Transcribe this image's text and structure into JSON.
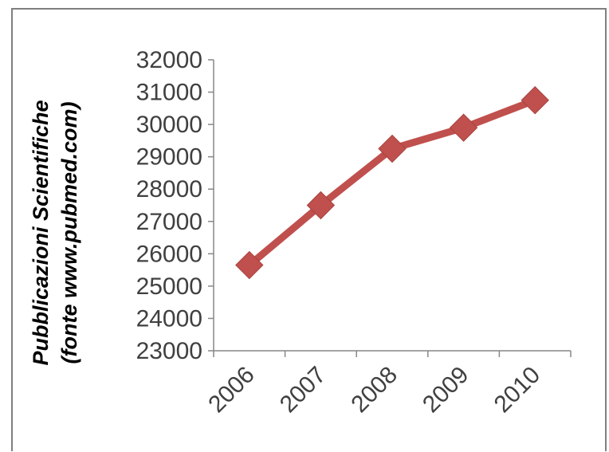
{
  "chart_data": {
    "type": "line",
    "categories": [
      "2006",
      "2007",
      "2008",
      "2009",
      "2010"
    ],
    "series": [
      {
        "values": [
          25650,
          27500,
          29250,
          29900,
          30750
        ]
      }
    ],
    "ylabel_line1": "Pubblicazioni Scientifiche",
    "ylabel_line2": "(fonte www.pubmed.com)",
    "ylim": [
      23000,
      32000
    ],
    "yticks": [
      23000,
      24000,
      25000,
      26000,
      27000,
      28000,
      29000,
      30000,
      31000,
      32000
    ],
    "grid": false,
    "legend": "none",
    "colors": {
      "series": "#c0504d",
      "axis": "#878787",
      "text": "#404040"
    }
  }
}
